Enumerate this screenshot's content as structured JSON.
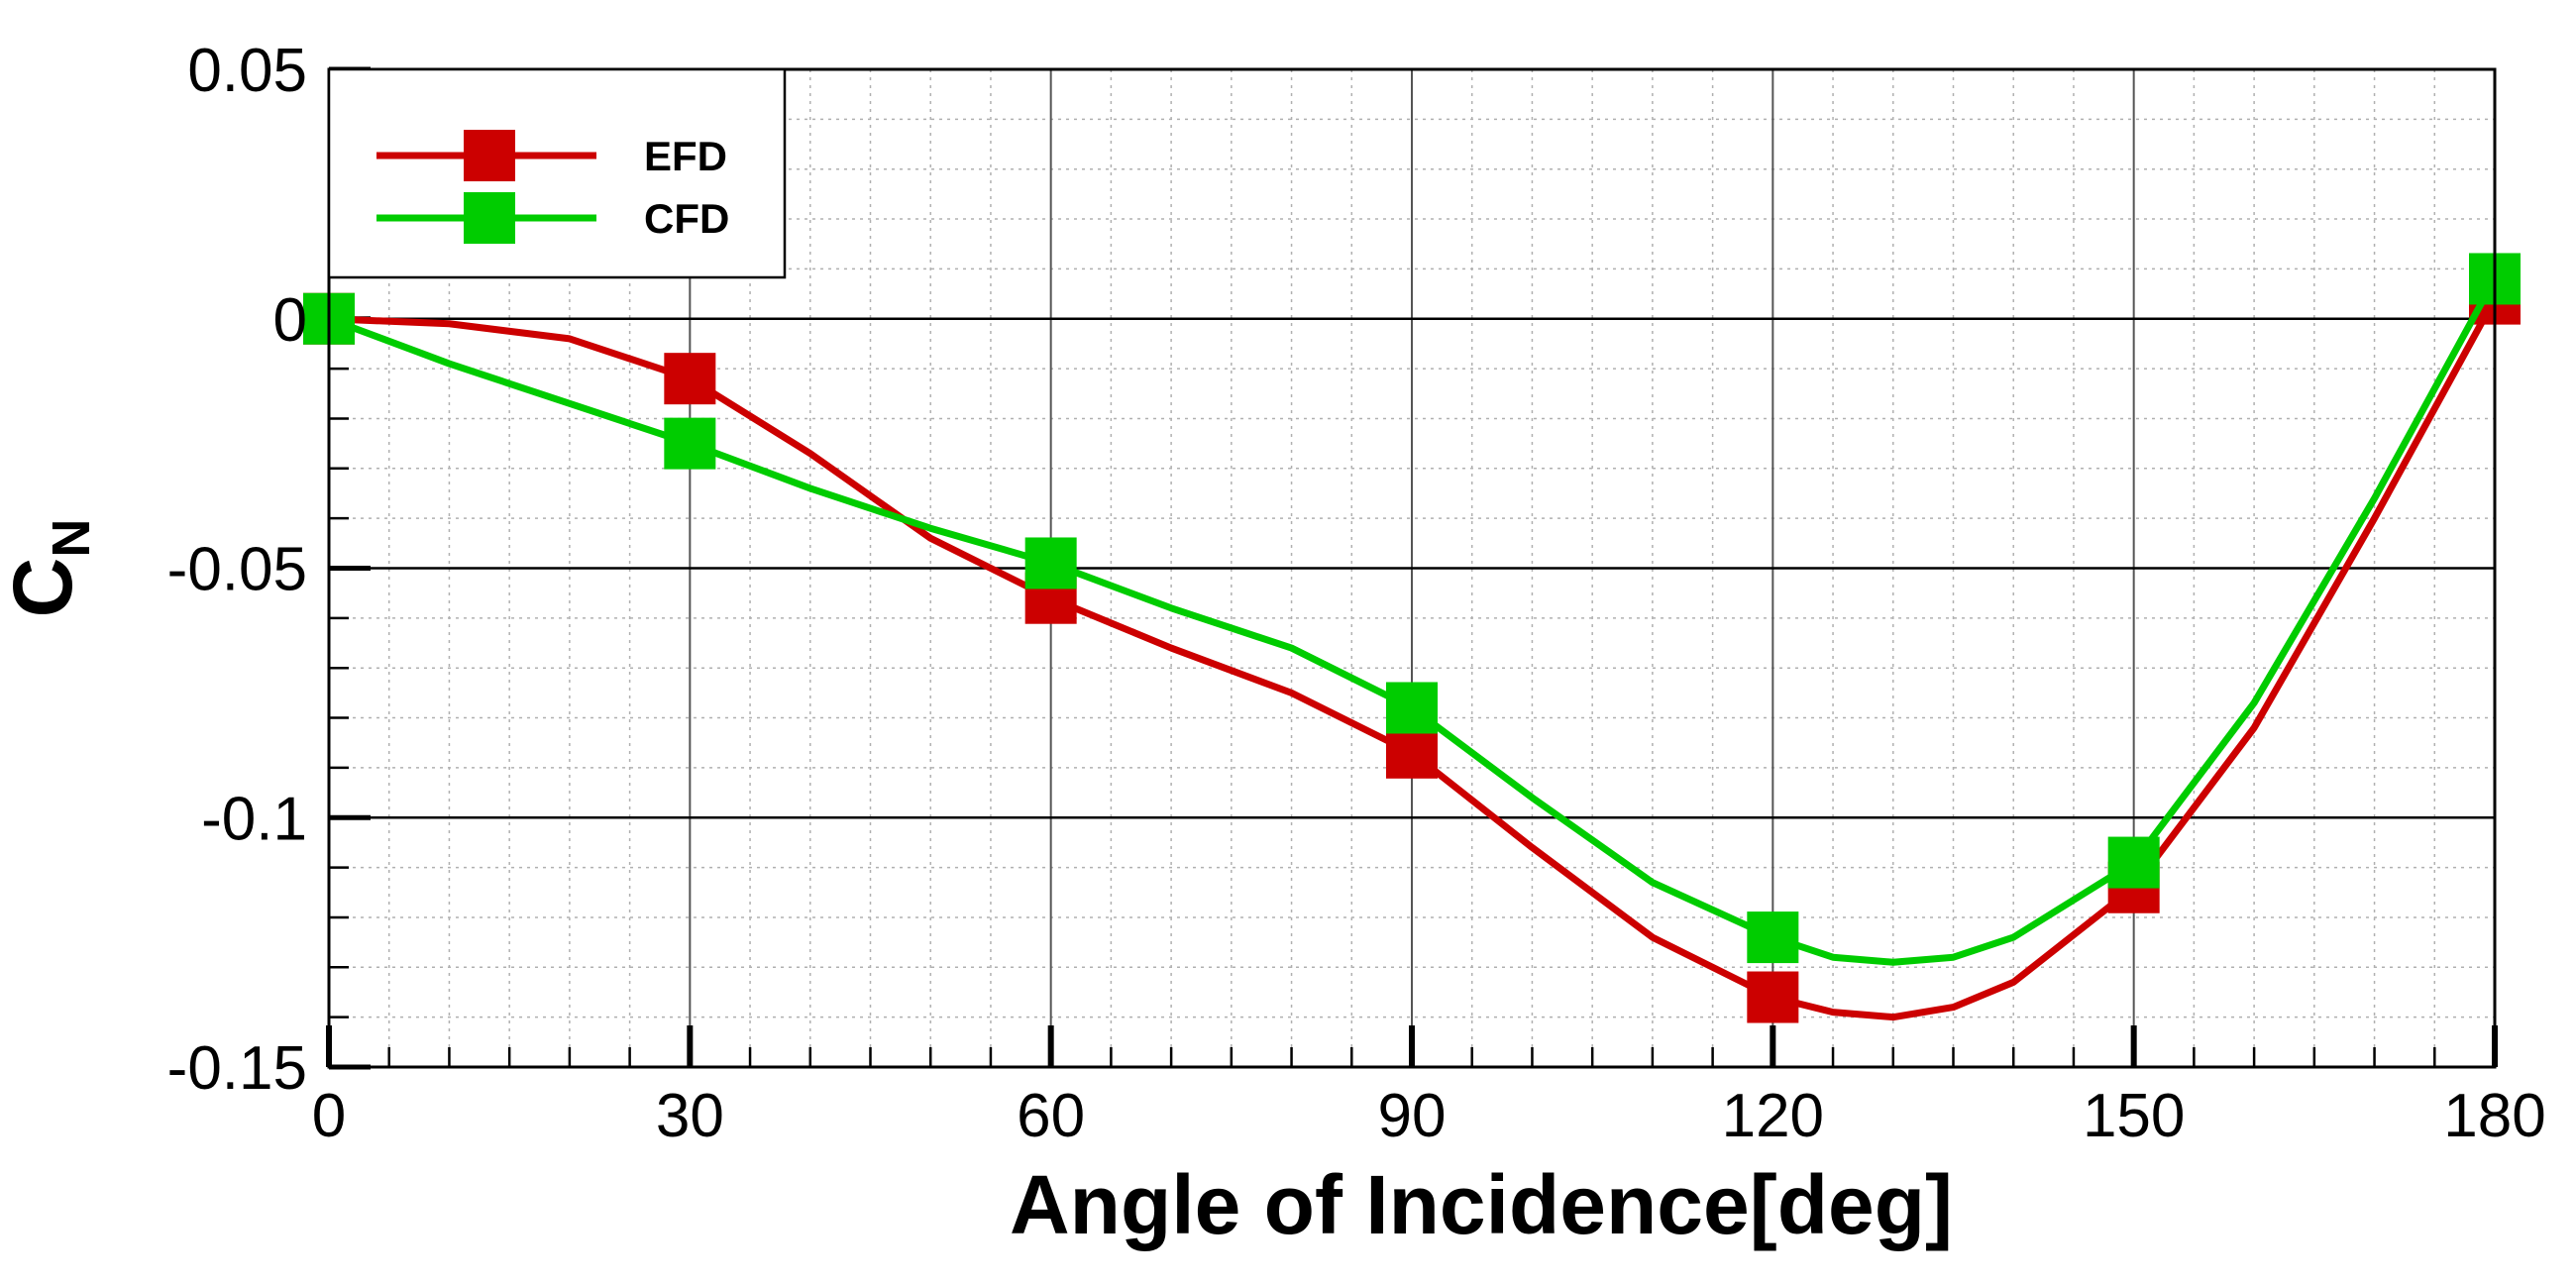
{
  "chart_data": {
    "type": "line",
    "title": "",
    "xlabel": "Angle of Incidence[deg]",
    "ylabel_main": "C",
    "ylabel_sub": "N",
    "xlim": [
      0,
      180
    ],
    "ylim": [
      -0.15,
      0.05
    ],
    "x_ticks": [
      0,
      30,
      60,
      90,
      120,
      150,
      180
    ],
    "x_tick_labels": [
      "0",
      "30",
      "60",
      "90",
      "120",
      "150",
      "180"
    ],
    "y_ticks": [
      0.05,
      0,
      -0.05,
      -0.1,
      -0.15
    ],
    "y_tick_labels": [
      "0.05",
      "0",
      "-0.05",
      "-0.1",
      "-0.15"
    ],
    "grid": true,
    "legend_position": "top-left",
    "series": [
      {
        "name": "EFD",
        "color": "#cc0000",
        "marker": "square",
        "x": [
          0,
          30,
          60,
          90,
          120,
          150,
          180
        ],
        "y": [
          0,
          -0.012,
          -0.056,
          -0.087,
          -0.136,
          -0.114,
          0.004
        ],
        "curve_x": [
          0,
          10,
          20,
          30,
          40,
          50,
          60,
          70,
          80,
          90,
          100,
          110,
          120,
          125,
          130,
          135,
          140,
          150,
          160,
          170,
          180
        ],
        "curve_y": [
          0,
          -0.001,
          -0.004,
          -0.012,
          -0.027,
          -0.044,
          -0.056,
          -0.066,
          -0.075,
          -0.087,
          -0.106,
          -0.124,
          -0.136,
          -0.139,
          -0.14,
          -0.138,
          -0.133,
          -0.114,
          -0.082,
          -0.04,
          0.004
        ]
      },
      {
        "name": "CFD",
        "color": "#00cc00",
        "marker": "square",
        "x": [
          0,
          30,
          60,
          90,
          120,
          150,
          180
        ],
        "y": [
          0,
          -0.025,
          -0.049,
          -0.078,
          -0.124,
          -0.109,
          0.008
        ],
        "curve_x": [
          0,
          10,
          20,
          30,
          40,
          50,
          60,
          70,
          80,
          90,
          100,
          110,
          120,
          125,
          130,
          135,
          140,
          150,
          160,
          170,
          180
        ],
        "curve_y": [
          0,
          -0.009,
          -0.017,
          -0.025,
          -0.034,
          -0.042,
          -0.049,
          -0.058,
          -0.066,
          -0.078,
          -0.096,
          -0.113,
          -0.124,
          -0.128,
          -0.129,
          -0.128,
          -0.124,
          -0.109,
          -0.077,
          -0.036,
          0.008
        ]
      }
    ]
  }
}
